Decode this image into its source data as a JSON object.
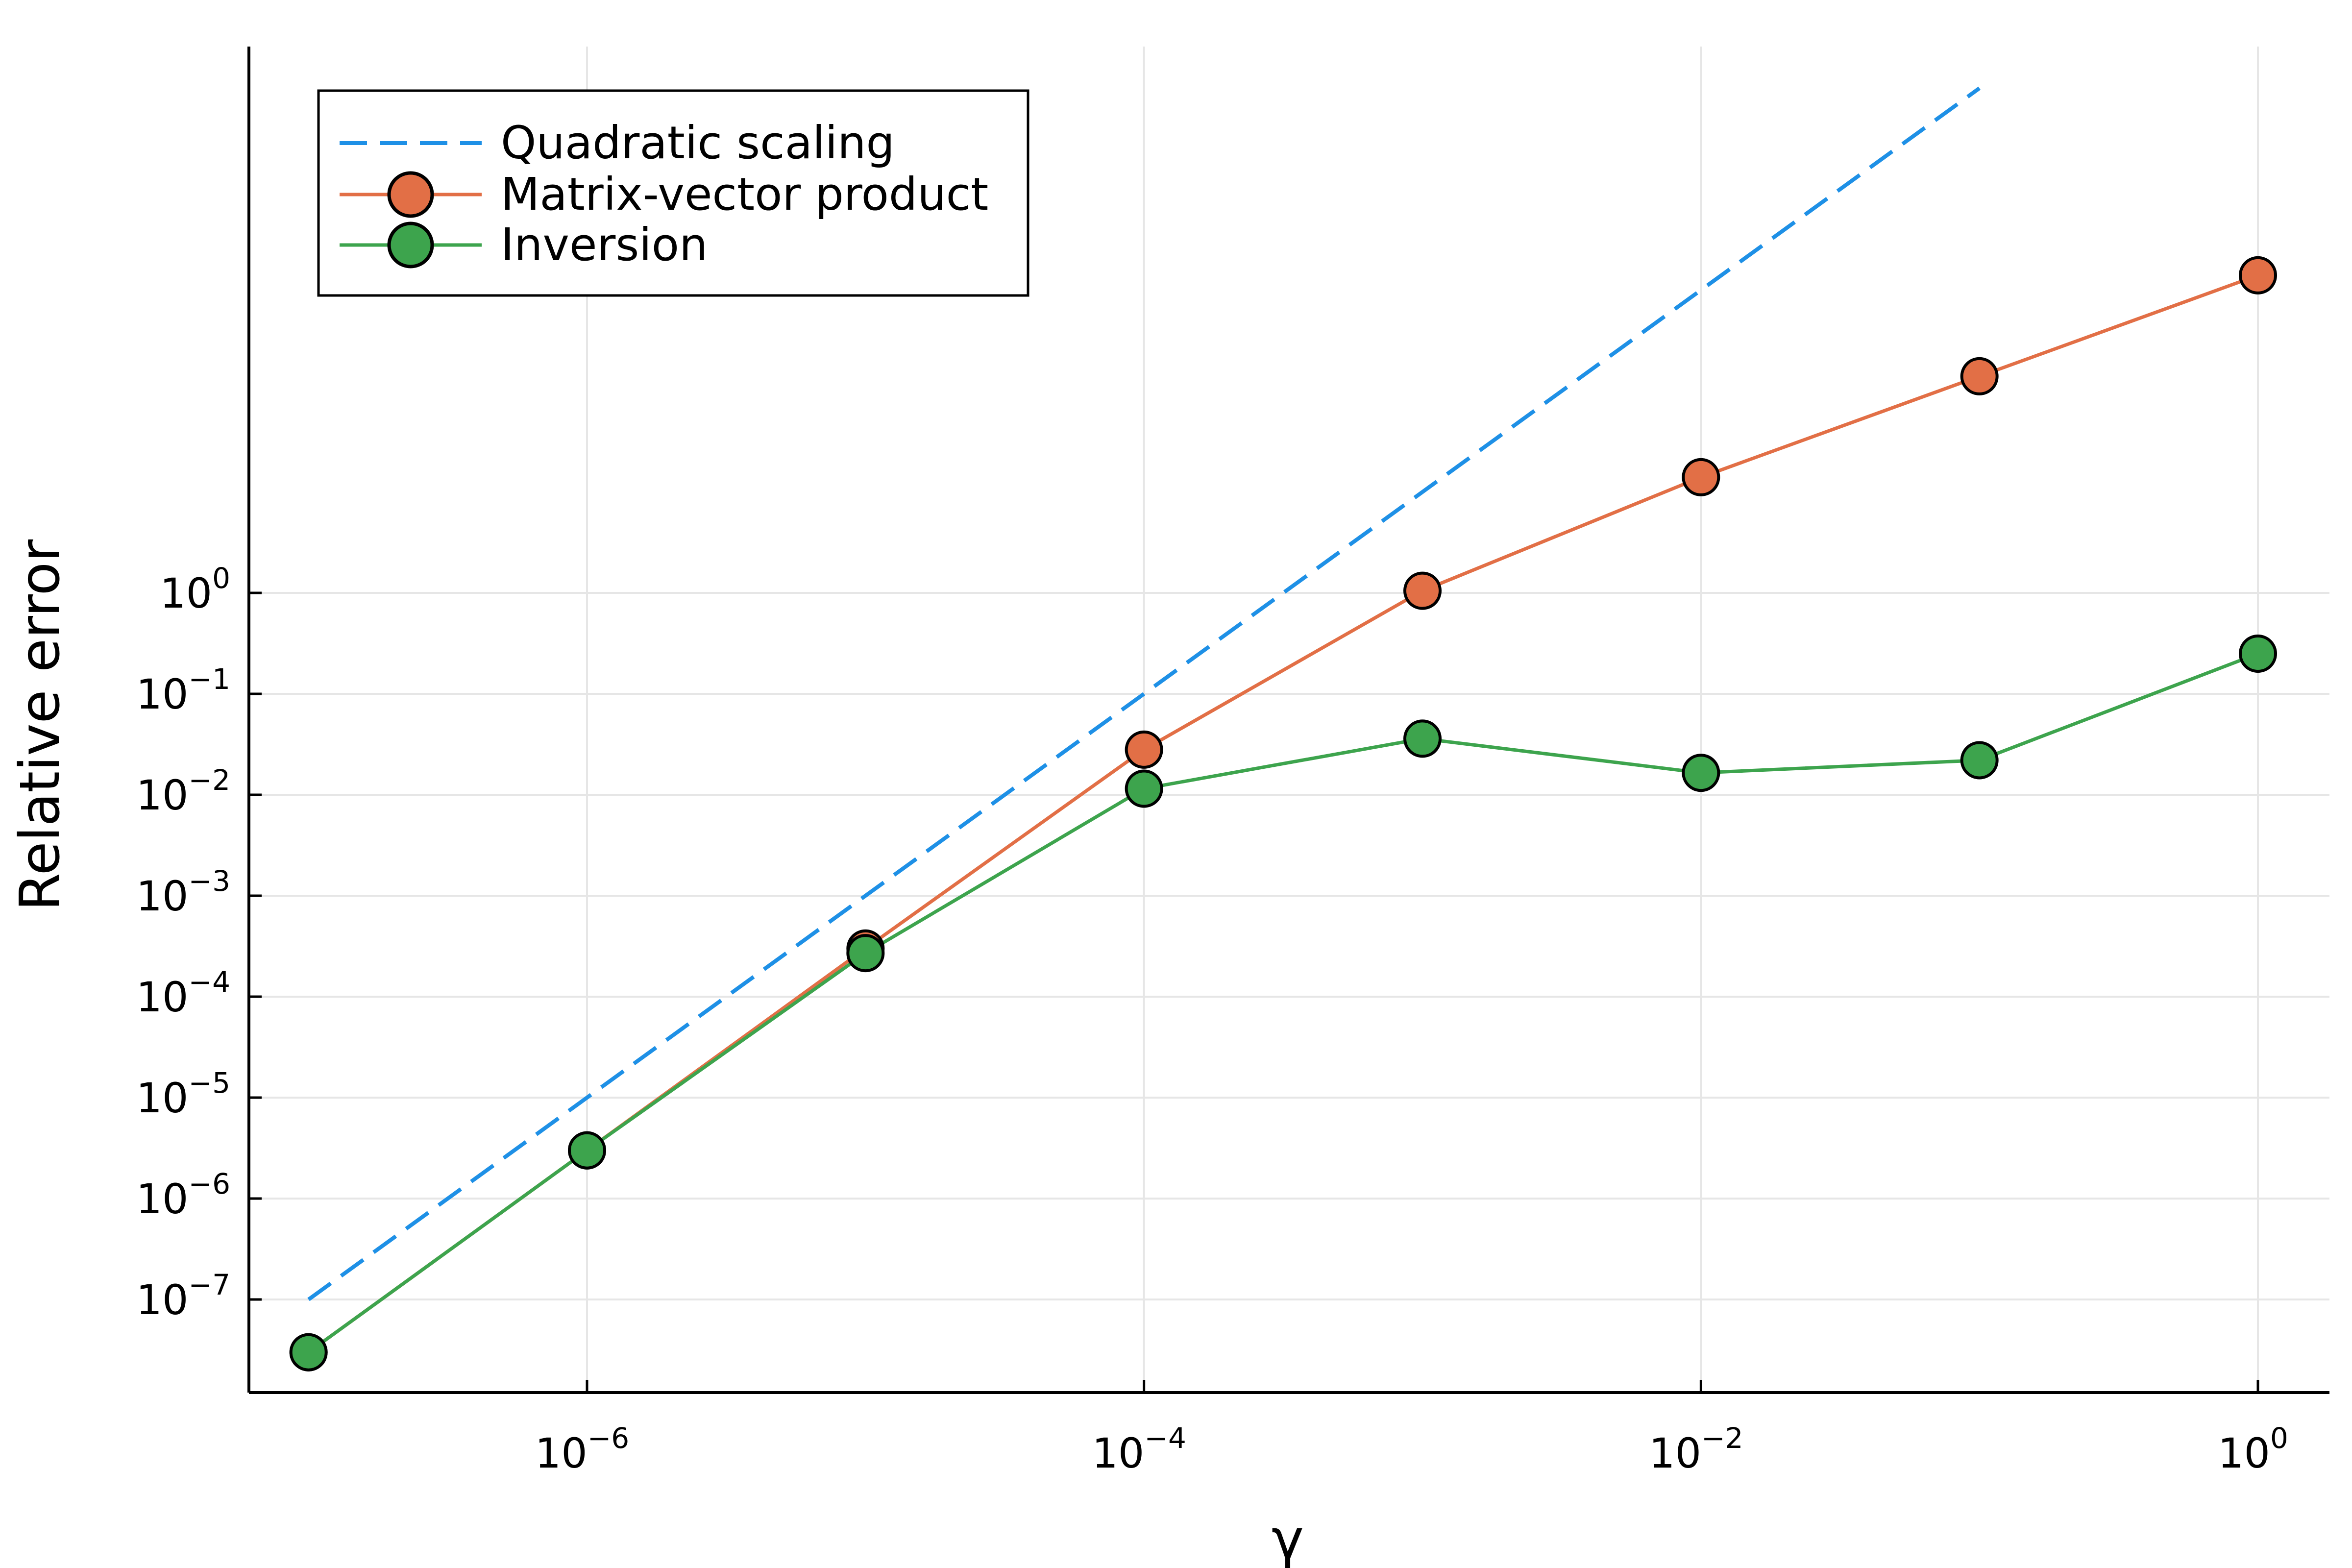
{
  "chart_data": {
    "type": "line",
    "xscale": "log",
    "yscale": "log",
    "xlabel": "γ",
    "ylabel": "Relative error",
    "xlim": [
      1e-07,
      1
    ],
    "ylim": [
      1e-08,
      10000
    ],
    "xticks": [
      {
        "value": 1e-06,
        "base": "10",
        "exp": "−6"
      },
      {
        "value": 0.0001,
        "base": "10",
        "exp": "−4"
      },
      {
        "value": 0.01,
        "base": "10",
        "exp": "−2"
      },
      {
        "value": 1,
        "base": "10",
        "exp": "0"
      }
    ],
    "yticks": [
      {
        "value": 1e-07,
        "base": "10",
        "exp": "−7"
      },
      {
        "value": 1e-06,
        "base": "10",
        "exp": "−6"
      },
      {
        "value": 1e-05,
        "base": "10",
        "exp": "−5"
      },
      {
        "value": 0.0001,
        "base": "10",
        "exp": "−4"
      },
      {
        "value": 0.001,
        "base": "10",
        "exp": "−3"
      },
      {
        "value": 0.01,
        "base": "10",
        "exp": "−2"
      },
      {
        "value": 0.1,
        "base": "10",
        "exp": "−1"
      },
      {
        "value": 1,
        "base": "10",
        "exp": "0"
      }
    ],
    "grid": true,
    "legend_position": "top-left",
    "series": [
      {
        "name": "Quadratic scaling",
        "color": "#1e90e6",
        "style": "dashed",
        "markers": false,
        "x": [
          1e-07,
          1e-06,
          1e-05,
          0.0001,
          0.001,
          0.01,
          0.1
        ],
        "y": [
          1e-07,
          1e-05,
          0.001,
          0.1,
          10,
          1000,
          100000
        ]
      },
      {
        "name": "Matrix-vector product",
        "color": "#e26f46",
        "style": "solid",
        "markers": true,
        "x": [
          1e-07,
          1e-06,
          1e-05,
          0.0001,
          0.001,
          0.01,
          0.1,
          1
        ],
        "y": [
          3e-08,
          3e-06,
          0.0003,
          0.028,
          1.05,
          14,
          140,
          1400
        ]
      },
      {
        "name": "Inversion",
        "color": "#3da44d",
        "style": "solid",
        "markers": true,
        "x": [
          1e-07,
          1e-06,
          1e-05,
          0.0001,
          0.001,
          0.01,
          0.1,
          1
        ],
        "y": [
          3e-08,
          3e-06,
          0.00027,
          0.0115,
          0.036,
          0.0165,
          0.022,
          0.25
        ]
      }
    ]
  }
}
